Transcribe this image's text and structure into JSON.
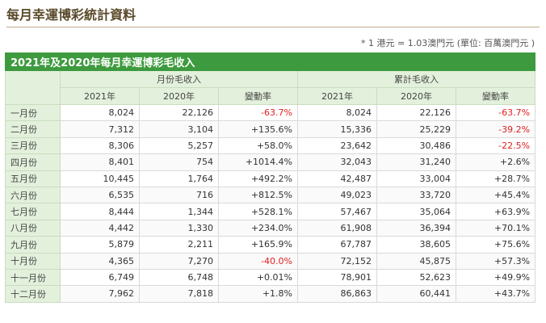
{
  "page_title": "每月幸運博彩統計資料",
  "note": "* 1 港元 = 1.03澳門元 (單位: 百萬澳門元 )",
  "table": {
    "caption": "2021年及2020年每月幸運博彩毛收入",
    "groups": [
      "月份毛收入",
      "累計毛收入"
    ],
    "subheaders": [
      "2021年",
      "2020年",
      "變動率",
      "2021年",
      "2020年",
      "變動率"
    ],
    "rows": [
      {
        "month": "一月份",
        "m2021": "8,024",
        "m2020": "22,126",
        "mchg": "-63.7%",
        "c2021": "8,024",
        "c2020": "22,126",
        "cchg": "-63.7%"
      },
      {
        "month": "二月份",
        "m2021": "7,312",
        "m2020": "3,104",
        "mchg": "+135.6%",
        "c2021": "15,336",
        "c2020": "25,229",
        "cchg": "-39.2%"
      },
      {
        "month": "三月份",
        "m2021": "8,306",
        "m2020": "5,257",
        "mchg": "+58.0%",
        "c2021": "23,642",
        "c2020": "30,486",
        "cchg": "-22.5%"
      },
      {
        "month": "四月份",
        "m2021": "8,401",
        "m2020": "754",
        "mchg": "+1014.4%",
        "c2021": "32,043",
        "c2020": "31,240",
        "cchg": "+2.6%"
      },
      {
        "month": "五月份",
        "m2021": "10,445",
        "m2020": "1,764",
        "mchg": "+492.2%",
        "c2021": "42,487",
        "c2020": "33,004",
        "cchg": "+28.7%"
      },
      {
        "month": "六月份",
        "m2021": "6,535",
        "m2020": "716",
        "mchg": "+812.5%",
        "c2021": "49,023",
        "c2020": "33,720",
        "cchg": "+45.4%"
      },
      {
        "month": "七月份",
        "m2021": "8,444",
        "m2020": "1,344",
        "mchg": "+528.1%",
        "c2021": "57,467",
        "c2020": "35,064",
        "cchg": "+63.9%"
      },
      {
        "month": "八月份",
        "m2021": "4,442",
        "m2020": "1,330",
        "mchg": "+234.0%",
        "c2021": "61,908",
        "c2020": "36,394",
        "cchg": "+70.1%"
      },
      {
        "month": "九月份",
        "m2021": "5,879",
        "m2020": "2,211",
        "mchg": "+165.9%",
        "c2021": "67,787",
        "c2020": "38,605",
        "cchg": "+75.6%"
      },
      {
        "month": "十月份",
        "m2021": "4,365",
        "m2020": "7,270",
        "mchg": "-40.0%",
        "c2021": "72,152",
        "c2020": "45,875",
        "cchg": "+57.3%"
      },
      {
        "month": "十一月份",
        "m2021": "6,749",
        "m2020": "6,748",
        "mchg": "+0.01%",
        "c2021": "78,901",
        "c2020": "52,623",
        "cchg": "+49.9%"
      },
      {
        "month": "十二月份",
        "m2021": "7,962",
        "m2020": "7,818",
        "mchg": "+1.8%",
        "c2021": "86,863",
        "c2020": "60,441",
        "cchg": "+43.7%"
      }
    ]
  },
  "colors": {
    "header_green": "#3e9a3e",
    "light_green": "#e3f1dc",
    "negative_red": "#e02020",
    "title_brown": "#5a4a2a"
  }
}
